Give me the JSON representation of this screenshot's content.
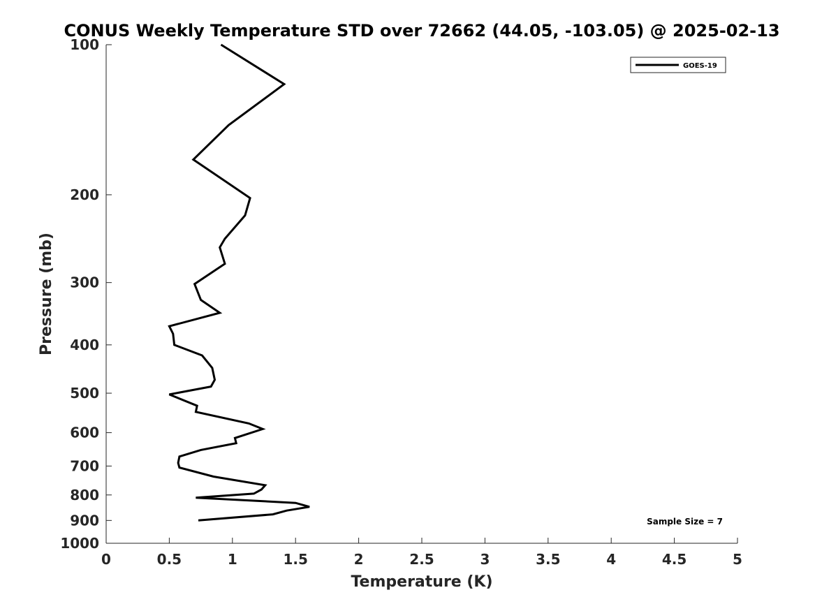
{
  "chart_data": {
    "type": "line",
    "title": "CONUS Weekly Temperature STD over 72662 (44.05, -103.05) @ 2025-02-13",
    "xlabel": "Temperature (K)",
    "ylabel": "Pressure (mb)",
    "xlim": [
      0,
      5
    ],
    "ylim": [
      100,
      1000
    ],
    "yscale": "log",
    "y_reversed": true,
    "grid": false,
    "legend_position": "top-right",
    "x_ticks": [
      0,
      0.5,
      1,
      1.5,
      2,
      2.5,
      3,
      3.5,
      4,
      4.5,
      5
    ],
    "x_tick_labels": [
      "0",
      "0.5",
      "1",
      "1.5",
      "2",
      "2.5",
      "3",
      "3.5",
      "4",
      "4.5",
      "5"
    ],
    "y_ticks": [
      100,
      200,
      300,
      400,
      500,
      600,
      700,
      800,
      900,
      1000
    ],
    "y_tick_labels": [
      "100",
      "200",
      "300",
      "400",
      "500",
      "600",
      "700",
      "800",
      "900",
      "1000"
    ],
    "series": [
      {
        "name": "GOES-19",
        "color": "#000000",
        "x": [
          0.91,
          1.41,
          0.97,
          0.69,
          1.14,
          1.1,
          0.94,
          0.9,
          0.94,
          0.7,
          0.75,
          0.9,
          0.5,
          0.53,
          0.54,
          0.76,
          0.84,
          0.86,
          0.83,
          0.5,
          0.72,
          0.71,
          1.13,
          1.24,
          1.02,
          1.03,
          0.75,
          0.58,
          0.57,
          0.58,
          0.85,
          1.26,
          1.23,
          1.17,
          0.71,
          1.5,
          1.61,
          1.43,
          1.32,
          0.73
        ],
        "y": [
          100,
          120,
          145,
          170,
          203,
          220,
          245,
          255,
          275,
          302,
          325,
          345,
          367,
          380,
          400,
          420,
          445,
          470,
          485,
          503,
          530,
          545,
          575,
          590,
          615,
          630,
          650,
          670,
          690,
          705,
          735,
          765,
          780,
          795,
          810,
          830,
          845,
          860,
          875,
          900
        ]
      }
    ],
    "annotations": [
      "Sample Size = 7"
    ]
  }
}
